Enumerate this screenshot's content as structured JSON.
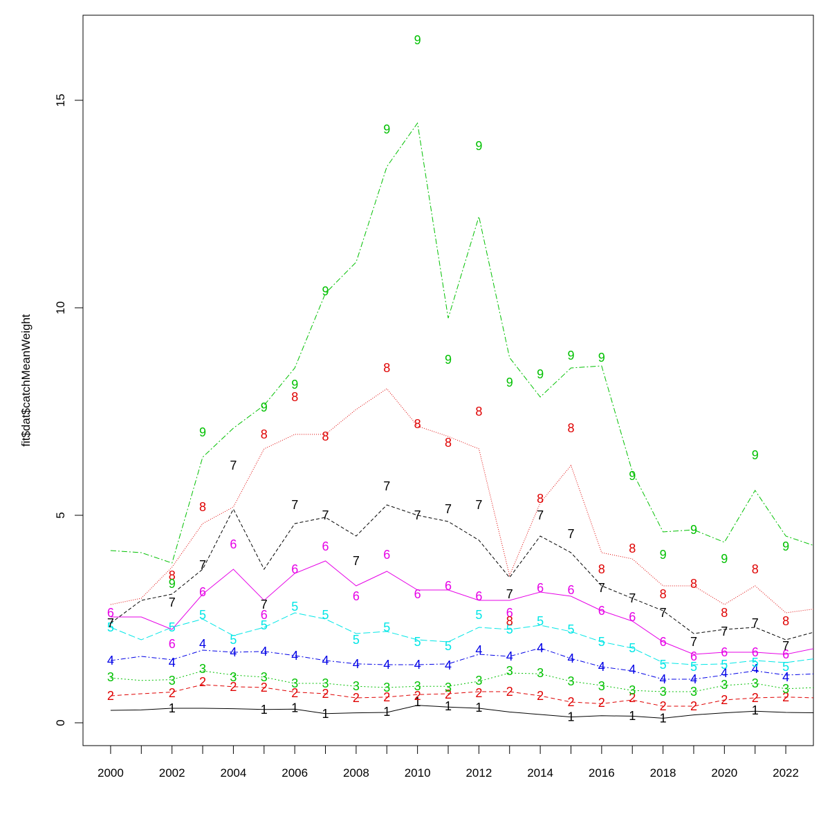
{
  "chart_data": {
    "type": "line",
    "title": "",
    "xlabel": "",
    "ylabel": "fit$dat$catchMeanWeight",
    "xlim": [
      1999.1,
      2022.9
    ],
    "ylim": [
      -0.55,
      17.05
    ],
    "x_ticks": [
      2000,
      2001,
      2002,
      2003,
      2004,
      2005,
      2006,
      2007,
      2008,
      2009,
      2010,
      2011,
      2012,
      2013,
      2014,
      2015,
      2016,
      2017,
      2018,
      2019,
      2020,
      2021,
      2022
    ],
    "x_tick_labels": [
      "2000",
      "",
      "2002",
      "",
      "2004",
      "",
      "2006",
      "",
      "2008",
      "",
      "2010",
      "",
      "2012",
      "",
      "2014",
      "",
      "2016",
      "",
      "2018",
      "",
      "2020",
      "",
      "2022"
    ],
    "y_ticks": [
      0,
      5,
      10,
      15
    ],
    "y_tick_labels": [
      "0",
      "5",
      "10",
      "15"
    ],
    "grid": false,
    "x": [
      2000,
      2001,
      2002,
      2003,
      2004,
      2005,
      2006,
      2007,
      2008,
      2009,
      2010,
      2011,
      2012,
      2013,
      2014,
      2015,
      2016,
      2017,
      2018,
      2019,
      2020,
      2021,
      2022,
      2023
    ],
    "series": [
      {
        "label": "1",
        "color": "#000000",
        "dash": "",
        "values": [
          0.3,
          0.31,
          0.35,
          0.35,
          0.34,
          0.32,
          0.33,
          0.22,
          0.24,
          0.25,
          0.42,
          0.38,
          0.35,
          0.26,
          0.2,
          0.14,
          0.17,
          0.16,
          0.11,
          0.19,
          0.24,
          0.28,
          0.25,
          0.24
        ],
        "points": [
          [
            2002,
            0.35
          ],
          [
            2005,
            0.32
          ],
          [
            2006,
            0.36
          ],
          [
            2007,
            0.22
          ],
          [
            2009,
            0.27
          ],
          [
            2010,
            0.5
          ],
          [
            2011,
            0.4
          ],
          [
            2012,
            0.37
          ],
          [
            2015,
            0.14
          ],
          [
            2017,
            0.17
          ],
          [
            2018,
            0.11
          ],
          [
            2021,
            0.3
          ]
        ]
      },
      {
        "label": "2",
        "color": "#df0000",
        "dash": "6,4",
        "values": [
          0.65,
          0.7,
          0.74,
          0.92,
          0.87,
          0.85,
          0.74,
          0.7,
          0.6,
          0.62,
          0.68,
          0.7,
          0.75,
          0.75,
          0.65,
          0.5,
          0.46,
          0.55,
          0.4,
          0.4,
          0.55,
          0.6,
          0.62,
          0.6
        ],
        "points": [
          [
            2000,
            0.65
          ],
          [
            2002,
            0.72
          ],
          [
            2003,
            0.98
          ],
          [
            2004,
            0.87
          ],
          [
            2005,
            0.85
          ],
          [
            2006,
            0.72
          ],
          [
            2007,
            0.7
          ],
          [
            2008,
            0.6
          ],
          [
            2009,
            0.62
          ],
          [
            2010,
            0.65
          ],
          [
            2011,
            0.68
          ],
          [
            2012,
            0.72
          ],
          [
            2013,
            0.75
          ],
          [
            2014,
            0.65
          ],
          [
            2015,
            0.5
          ],
          [
            2016,
            0.48
          ],
          [
            2017,
            0.6
          ],
          [
            2018,
            0.4
          ],
          [
            2019,
            0.4
          ],
          [
            2020,
            0.55
          ],
          [
            2021,
            0.6
          ],
          [
            2022,
            0.62
          ]
        ]
      },
      {
        "label": "3",
        "color": "#00c000",
        "dash": "2,3",
        "values": [
          1.08,
          1.02,
          1.04,
          1.25,
          1.15,
          1.1,
          0.95,
          0.95,
          0.88,
          0.85,
          0.88,
          0.88,
          1.0,
          1.2,
          1.18,
          1.0,
          0.9,
          0.78,
          0.75,
          0.75,
          0.9,
          0.95,
          0.82,
          0.85
        ],
        "points": [
          [
            2000,
            1.1
          ],
          [
            2002,
            1.02
          ],
          [
            2003,
            1.3
          ],
          [
            2004,
            1.1
          ],
          [
            2005,
            1.1
          ],
          [
            2006,
            0.95
          ],
          [
            2007,
            0.95
          ],
          [
            2008,
            0.88
          ],
          [
            2009,
            0.85
          ],
          [
            2010,
            0.88
          ],
          [
            2011,
            0.85
          ],
          [
            2012,
            1.02
          ],
          [
            2013,
            1.25
          ],
          [
            2014,
            1.2
          ],
          [
            2015,
            1.0
          ],
          [
            2016,
            0.88
          ],
          [
            2017,
            0.78
          ],
          [
            2018,
            0.75
          ],
          [
            2019,
            0.75
          ],
          [
            2020,
            0.92
          ],
          [
            2021,
            0.95
          ],
          [
            2022,
            0.82
          ]
        ]
      },
      {
        "label": "4",
        "color": "#0000e6",
        "dash": "7,3,2,3",
        "values": [
          1.5,
          1.6,
          1.52,
          1.75,
          1.7,
          1.72,
          1.62,
          1.5,
          1.42,
          1.4,
          1.4,
          1.42,
          1.65,
          1.6,
          1.8,
          1.55,
          1.35,
          1.25,
          1.05,
          1.05,
          1.15,
          1.25,
          1.15,
          1.18
        ],
        "points": [
          [
            2000,
            1.5
          ],
          [
            2002,
            1.45
          ],
          [
            2003,
            1.9
          ],
          [
            2004,
            1.7
          ],
          [
            2005,
            1.72
          ],
          [
            2006,
            1.62
          ],
          [
            2007,
            1.5
          ],
          [
            2008,
            1.42
          ],
          [
            2009,
            1.4
          ],
          [
            2010,
            1.4
          ],
          [
            2011,
            1.38
          ],
          [
            2012,
            1.75
          ],
          [
            2013,
            1.6
          ],
          [
            2014,
            1.8
          ],
          [
            2015,
            1.55
          ],
          [
            2016,
            1.35
          ],
          [
            2017,
            1.28
          ],
          [
            2018,
            1.05
          ],
          [
            2019,
            1.05
          ],
          [
            2020,
            1.2
          ],
          [
            2021,
            1.3
          ],
          [
            2022,
            1.1
          ]
        ]
      },
      {
        "label": "5",
        "color": "#00e6e6",
        "dash": "10,4",
        "values": [
          2.3,
          2.0,
          2.3,
          2.5,
          2.1,
          2.3,
          2.65,
          2.5,
          2.15,
          2.2,
          2.0,
          1.95,
          2.3,
          2.25,
          2.35,
          2.2,
          1.95,
          1.8,
          1.45,
          1.4,
          1.42,
          1.5,
          1.45,
          1.55
        ],
        "points": [
          [
            2000,
            2.3
          ],
          [
            2002,
            2.3
          ],
          [
            2003,
            2.6
          ],
          [
            2004,
            2.0
          ],
          [
            2005,
            2.35
          ],
          [
            2006,
            2.8
          ],
          [
            2007,
            2.6
          ],
          [
            2008,
            2.0
          ],
          [
            2009,
            2.3
          ],
          [
            2010,
            1.95
          ],
          [
            2011,
            1.85
          ],
          [
            2012,
            2.6
          ],
          [
            2013,
            2.25
          ],
          [
            2014,
            2.45
          ],
          [
            2015,
            2.25
          ],
          [
            2016,
            1.95
          ],
          [
            2017,
            1.8
          ],
          [
            2018,
            1.4
          ],
          [
            2019,
            1.35
          ],
          [
            2020,
            1.4
          ],
          [
            2021,
            1.45
          ],
          [
            2022,
            1.35
          ]
        ]
      },
      {
        "label": "6",
        "color": "#e600e6",
        "dash": "",
        "values": [
          2.55,
          2.55,
          2.25,
          3.1,
          3.7,
          2.95,
          3.6,
          3.9,
          3.3,
          3.65,
          3.2,
          3.2,
          2.95,
          2.95,
          3.15,
          3.05,
          2.7,
          2.45,
          1.95,
          1.65,
          1.7,
          1.7,
          1.65,
          1.8
        ],
        "points": [
          [
            2000,
            2.65
          ],
          [
            2002,
            1.9
          ],
          [
            2003,
            3.15
          ],
          [
            2004,
            4.3
          ],
          [
            2005,
            2.6
          ],
          [
            2006,
            3.7
          ],
          [
            2007,
            4.25
          ],
          [
            2008,
            3.05
          ],
          [
            2009,
            4.05
          ],
          [
            2010,
            3.1
          ],
          [
            2011,
            3.3
          ],
          [
            2012,
            3.05
          ],
          [
            2013,
            2.65
          ],
          [
            2014,
            3.25
          ],
          [
            2015,
            3.2
          ],
          [
            2016,
            2.7
          ],
          [
            2017,
            2.55
          ],
          [
            2018,
            1.95
          ],
          [
            2019,
            1.6
          ],
          [
            2020,
            1.7
          ],
          [
            2021,
            1.7
          ],
          [
            2022,
            1.65
          ]
        ]
      },
      {
        "label": "7",
        "color": "#000000",
        "dash": "5,3",
        "values": [
          2.4,
          2.95,
          3.1,
          3.7,
          5.15,
          3.7,
          4.8,
          4.95,
          4.5,
          5.25,
          5.0,
          4.85,
          4.4,
          3.5,
          4.5,
          4.1,
          3.3,
          3.0,
          2.7,
          2.15,
          2.25,
          2.3,
          2.0,
          2.2
        ],
        "points": [
          [
            2000,
            2.4
          ],
          [
            2002,
            2.9
          ],
          [
            2003,
            3.8
          ],
          [
            2004,
            6.2
          ],
          [
            2005,
            2.85
          ],
          [
            2006,
            5.25
          ],
          [
            2007,
            5.0
          ],
          [
            2008,
            3.9
          ],
          [
            2009,
            5.7
          ],
          [
            2010,
            5.0
          ],
          [
            2011,
            5.15
          ],
          [
            2012,
            5.25
          ],
          [
            2013,
            3.1
          ],
          [
            2014,
            5.0
          ],
          [
            2015,
            4.55
          ],
          [
            2016,
            3.25
          ],
          [
            2017,
            3.0
          ],
          [
            2018,
            2.65
          ],
          [
            2019,
            1.95
          ],
          [
            2020,
            2.2
          ],
          [
            2021,
            2.4
          ],
          [
            2022,
            1.85
          ]
        ]
      },
      {
        "label": "8",
        "color": "#df0000",
        "dash": "1,2",
        "values": [
          2.85,
          3.0,
          3.75,
          4.8,
          5.2,
          6.6,
          6.95,
          6.95,
          7.55,
          8.05,
          7.15,
          6.9,
          6.6,
          3.55,
          5.3,
          6.2,
          4.1,
          3.95,
          3.3,
          3.3,
          2.85,
          3.3,
          2.65,
          2.75
        ],
        "points": [
          [
            2002,
            3.55
          ],
          [
            2003,
            5.2
          ],
          [
            2005,
            6.95
          ],
          [
            2006,
            7.85
          ],
          [
            2007,
            6.9
          ],
          [
            2009,
            8.55
          ],
          [
            2010,
            7.2
          ],
          [
            2011,
            6.75
          ],
          [
            2012,
            7.5
          ],
          [
            2013,
            2.45
          ],
          [
            2014,
            5.4
          ],
          [
            2015,
            7.1
          ],
          [
            2016,
            3.7
          ],
          [
            2017,
            4.2
          ],
          [
            2018,
            3.1
          ],
          [
            2019,
            3.35
          ],
          [
            2020,
            2.65
          ],
          [
            2021,
            3.7
          ],
          [
            2022,
            2.45
          ]
        ]
      },
      {
        "label": "9",
        "color": "#00c000",
        "dash": "8,3,2,3",
        "values": [
          4.15,
          4.1,
          3.85,
          6.4,
          7.1,
          7.65,
          8.55,
          10.35,
          11.1,
          13.4,
          14.45,
          9.75,
          12.2,
          8.8,
          7.85,
          8.55,
          8.6,
          6.05,
          4.6,
          4.65,
          4.35,
          5.6,
          4.5,
          4.25
        ],
        "points": [
          [
            2002,
            3.35
          ],
          [
            2003,
            7.0
          ],
          [
            2005,
            7.6
          ],
          [
            2006,
            8.15
          ],
          [
            2007,
            10.4
          ],
          [
            2009,
            14.3
          ],
          [
            2010,
            16.45
          ],
          [
            2011,
            8.75
          ],
          [
            2012,
            13.9
          ],
          [
            2013,
            8.2
          ],
          [
            2014,
            8.4
          ],
          [
            2015,
            8.85
          ],
          [
            2016,
            8.8
          ],
          [
            2017,
            5.95
          ],
          [
            2018,
            4.05
          ],
          [
            2019,
            4.65
          ],
          [
            2020,
            3.95
          ],
          [
            2021,
            6.45
          ],
          [
            2022,
            4.25
          ]
        ]
      }
    ]
  }
}
